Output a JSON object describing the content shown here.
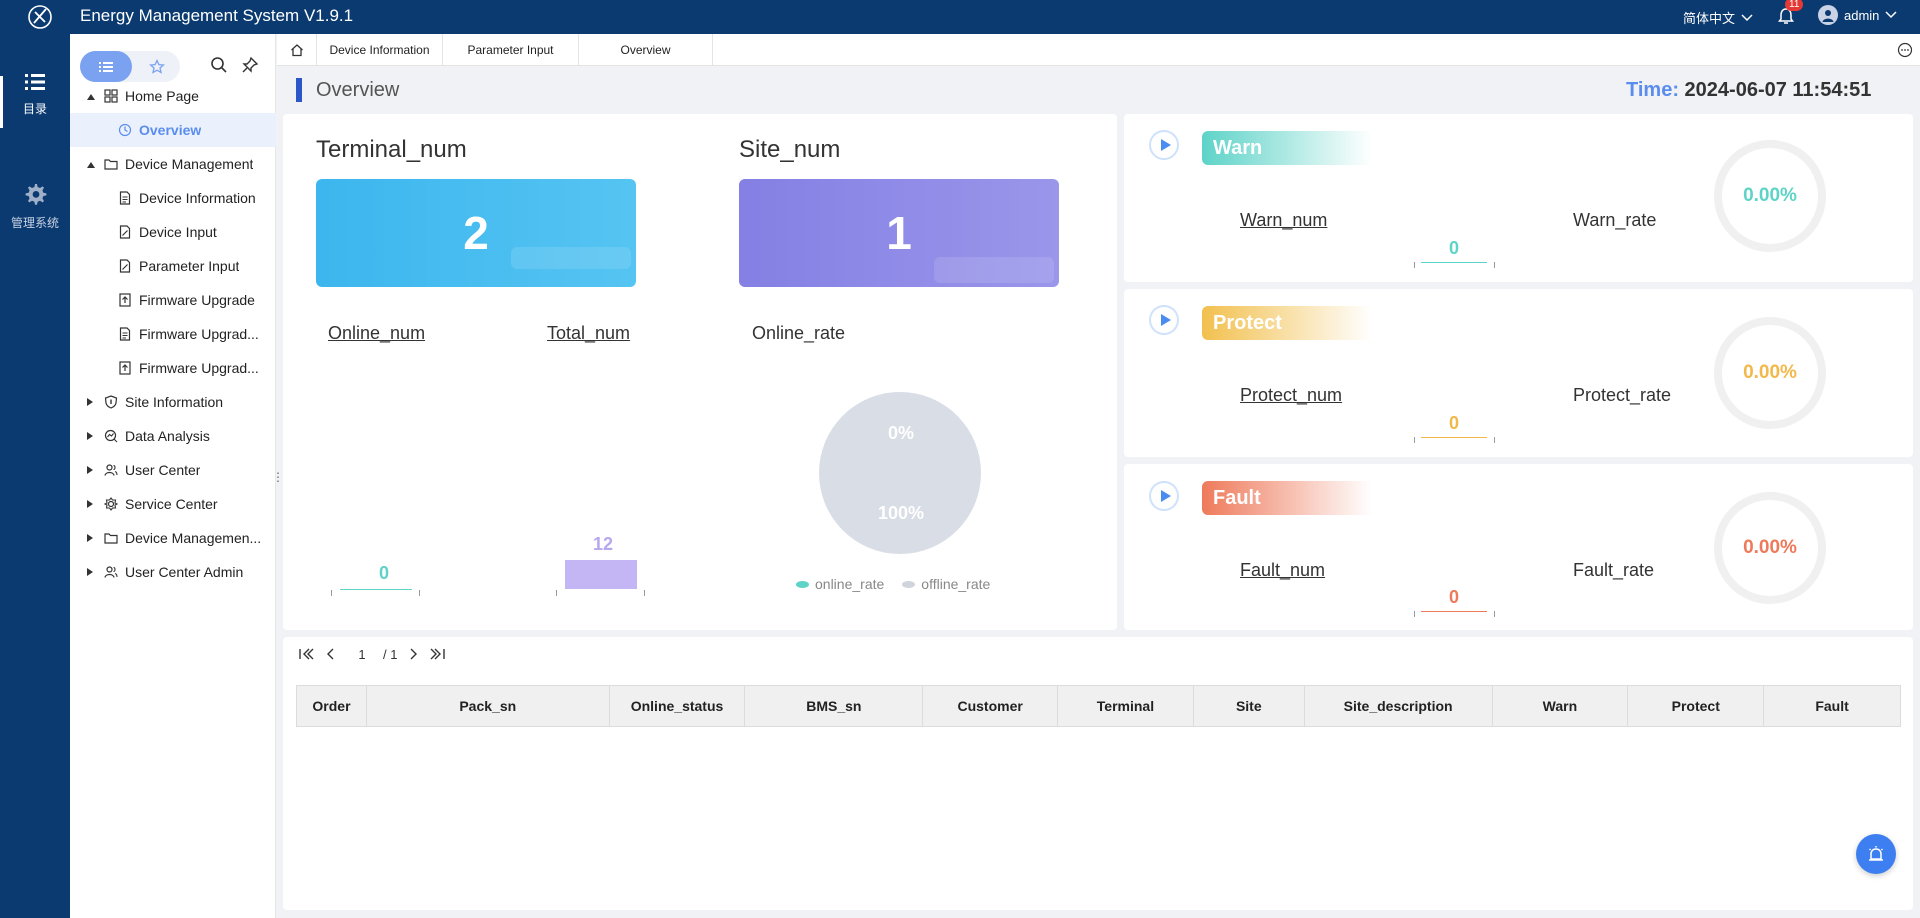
{
  "app": {
    "title": "Energy Management System  V1.9.1",
    "language": "简体中文",
    "notification_count": "11",
    "user_name": "admin"
  },
  "rail": [
    {
      "label": "目录",
      "icon": "list-icon",
      "active": true
    },
    {
      "label": "管理系统",
      "icon": "gear-icon",
      "active": false
    }
  ],
  "sidebar": {
    "tree": [
      {
        "label": "Home Page",
        "icon": "home-grid-icon",
        "level": 0,
        "expanded": true
      },
      {
        "label": "Overview",
        "icon": "clock-icon",
        "level": 1,
        "active": true
      },
      {
        "label": "Device Management",
        "icon": "folder-icon",
        "level": 0,
        "expanded": true
      },
      {
        "label": "Device Information",
        "icon": "document-icon",
        "level": 1
      },
      {
        "label": "Device Input",
        "icon": "edit-document-icon",
        "level": 1
      },
      {
        "label": "Parameter Input",
        "icon": "edit-document-icon",
        "level": 1
      },
      {
        "label": "Firmware Upgrade",
        "icon": "upgrade-icon",
        "level": 1
      },
      {
        "label": "Firmware Upgrad...",
        "icon": "document-icon",
        "level": 1
      },
      {
        "label": "Firmware Upgrad...",
        "icon": "upgrade-icon",
        "level": 1
      },
      {
        "label": "Site Information",
        "icon": "shield-icon",
        "level": 0,
        "expanded": false
      },
      {
        "label": "Data Analysis",
        "icon": "analysis-icon",
        "level": 0,
        "expanded": false
      },
      {
        "label": "User Center",
        "icon": "users-icon",
        "level": 0,
        "expanded": false
      },
      {
        "label": "Service Center",
        "icon": "service-icon",
        "level": 0,
        "expanded": false
      },
      {
        "label": "Device Managemen...",
        "icon": "folder-icon",
        "level": 0,
        "expanded": false
      },
      {
        "label": "User Center Admin",
        "icon": "users-icon",
        "level": 0,
        "expanded": false
      }
    ]
  },
  "tabs": [
    {
      "label": "Device Information"
    },
    {
      "label": "Parameter Input"
    },
    {
      "label": "Overview"
    }
  ],
  "header": {
    "title": "Overview",
    "time_label": "Time:",
    "time_value": "2024-06-07   11:54:51"
  },
  "summary": {
    "terminal_label": "Terminal_num",
    "terminal_value": "2",
    "site_label": "Site_num",
    "site_value": "1",
    "online_label": "Online_num",
    "online_value": "0",
    "total_label": "Total_num",
    "total_value": "12",
    "online_rate_label": "Online_rate",
    "pie_online_pct": "0%",
    "pie_offline_pct": "100%",
    "legend_online": "online_rate",
    "legend_offline": "offline_rate"
  },
  "alerts": {
    "warn": {
      "title": "Warn",
      "num_label": "Warn_num",
      "num": "0",
      "rate_label": "Warn_rate",
      "rate": "0.00%",
      "color": "#5ed3c8"
    },
    "protect": {
      "title": "Protect",
      "num_label": "Protect_num",
      "num": "0",
      "rate_label": "Protect_rate",
      "rate": "0.00%",
      "color": "#f2b84b"
    },
    "fault": {
      "title": "Fault",
      "num_label": "Fault_num",
      "num": "0",
      "rate_label": "Fault_rate",
      "rate": "0.00%",
      "color": "#ee7a5b"
    }
  },
  "pager": {
    "current": "1",
    "total": "/ 1"
  },
  "table": {
    "columns": [
      "Order",
      "Pack_sn",
      "Online_status",
      "BMS_sn",
      "Customer",
      "Terminal",
      "Site",
      "Site_description",
      "Warn",
      "Protect",
      "Fault"
    ]
  },
  "colors": {
    "navy": "#0b3a71",
    "accent": "#5b8def",
    "terminal_tile": "#43bbef",
    "site_tile": "#8a86e6"
  }
}
